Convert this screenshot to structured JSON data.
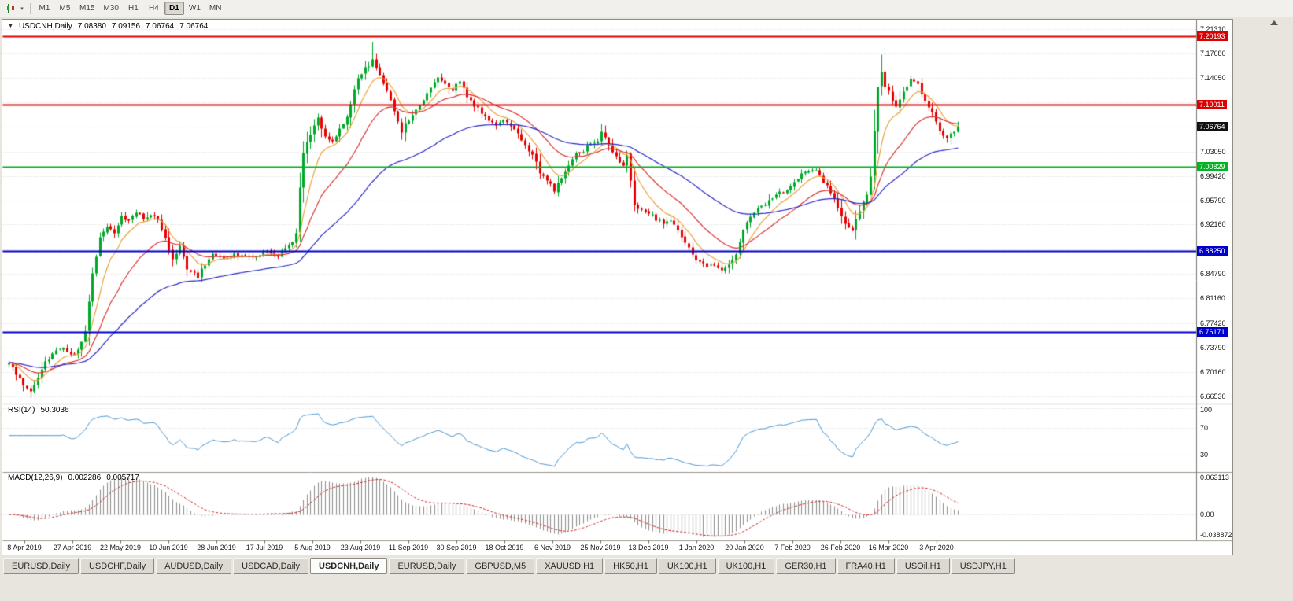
{
  "toolbar": {
    "timeframes": [
      "M1",
      "M5",
      "M15",
      "M30",
      "H1",
      "H4",
      "D1",
      "W1",
      "MN"
    ],
    "active_timeframe": "D1"
  },
  "chart_header": {
    "symbol_title": "USDCNH,Daily",
    "open": "7.08380",
    "high": "7.09156",
    "low": "7.06764",
    "close": "7.06764"
  },
  "rsi_panel": {
    "label": "RSI(14)",
    "value": "50.3036",
    "levels": [
      "100",
      "70",
      "30"
    ]
  },
  "macd_panel": {
    "label": "MACD(12,26,9)",
    "value_main": "0.002286",
    "value_signal": "0.005717",
    "axis_labels": [
      "0.063113",
      "0.00",
      "-0.038872"
    ],
    "axis_values": [
      0.063113,
      0,
      -0.038872
    ]
  },
  "chart_data": {
    "type": "candlestick",
    "symbol": "USDCNH",
    "timeframe": "Daily",
    "title": "USDCNH,Daily",
    "quote": {
      "open": 7.0838,
      "high": 7.09156,
      "low": 7.06764,
      "close": 7.06764
    },
    "y_range": [
      6.6594,
      7.2201
    ],
    "y_ticks": [
      "7.21310",
      "7.17680",
      "7.14050",
      "7.03050",
      "6.99420",
      "6.95790",
      "6.92160",
      "6.84790",
      "6.81160",
      "6.77420",
      "6.73790",
      "6.70160",
      "6.66530"
    ],
    "y_grid_extra": [
      7.1042,
      7.0679,
      6.88475
    ],
    "x_labels": [
      "8 Apr 2019",
      "27 Apr 2019",
      "22 May 2019",
      "10 Jun 2019",
      "28 Jun 2019",
      "17 Jul 2019",
      "5 Aug 2019",
      "23 Aug 2019",
      "11 Sep 2019",
      "30 Sep 2019",
      "18 Oct 2019",
      "6 Nov 2019",
      "25 Nov 2019",
      "13 Dec 2019",
      "1 Jan 2020",
      "20 Jan 2020",
      "7 Feb 2020",
      "26 Feb 2020",
      "16 Mar 2020",
      "3 Apr 2020"
    ],
    "h_lines": [
      {
        "price": 7.20193,
        "label": "7.20193",
        "color": "#dd0000"
      },
      {
        "price": 7.10011,
        "label": "7.10011",
        "color": "#dd0000"
      },
      {
        "price": 7.00829,
        "label": "7.00829",
        "color": "#00b31f"
      },
      {
        "price": 6.8825,
        "label": "6.88250",
        "color": "#0000cc"
      },
      {
        "price": 6.76171,
        "label": "6.76171",
        "color": "#0000cc"
      }
    ],
    "current_price": {
      "value": 7.06764,
      "label": "7.06764",
      "tag_color": "#111111"
    },
    "up_color": "#00a829",
    "down_color": "#e60000",
    "candles_count": 262,
    "close_path": [
      [
        0,
        6.718
      ],
      [
        2,
        6.7
      ],
      [
        4,
        6.684
      ],
      [
        6,
        6.671
      ],
      [
        8,
        6.696
      ],
      [
        10,
        6.716
      ],
      [
        13,
        6.733
      ],
      [
        15,
        6.739
      ],
      [
        17,
        6.727
      ],
      [
        19,
        6.736
      ],
      [
        21,
        6.762
      ],
      [
        23,
        6.848
      ],
      [
        25,
        6.906
      ],
      [
        27,
        6.918
      ],
      [
        29,
        6.912
      ],
      [
        31,
        6.936
      ],
      [
        33,
        6.928
      ],
      [
        35,
        6.943
      ],
      [
        37,
        6.931
      ],
      [
        39,
        6.939
      ],
      [
        41,
        6.928
      ],
      [
        43,
        6.904
      ],
      [
        45,
        6.868
      ],
      [
        47,
        6.889
      ],
      [
        49,
        6.857
      ],
      [
        52,
        6.845
      ],
      [
        54,
        6.863
      ],
      [
        56,
        6.877
      ],
      [
        59,
        6.871
      ],
      [
        62,
        6.879
      ],
      [
        65,
        6.874
      ],
      [
        68,
        6.877
      ],
      [
        71,
        6.881
      ],
      [
        74,
        6.877
      ],
      [
        77,
        6.889
      ],
      [
        79,
        6.908
      ],
      [
        80,
        6.978
      ],
      [
        81,
        7.028
      ],
      [
        83,
        7.058
      ],
      [
        85,
        7.082
      ],
      [
        87,
        7.054
      ],
      [
        89,
        7.046
      ],
      [
        91,
        7.063
      ],
      [
        93,
        7.081
      ],
      [
        95,
        7.126
      ],
      [
        97,
        7.149
      ],
      [
        99,
        7.161
      ],
      [
        100,
        7.168
      ],
      [
        102,
        7.146
      ],
      [
        104,
        7.124
      ],
      [
        106,
        7.089
      ],
      [
        108,
        7.061
      ],
      [
        110,
        7.079
      ],
      [
        112,
        7.093
      ],
      [
        114,
        7.109
      ],
      [
        116,
        7.127
      ],
      [
        118,
        7.144
      ],
      [
        120,
        7.131
      ],
      [
        122,
        7.124
      ],
      [
        124,
        7.137
      ],
      [
        126,
        7.113
      ],
      [
        128,
        7.099
      ],
      [
        130,
        7.089
      ],
      [
        132,
        7.077
      ],
      [
        134,
        7.069
      ],
      [
        136,
        7.079
      ],
      [
        138,
        7.071
      ],
      [
        140,
        7.057
      ],
      [
        142,
        7.041
      ],
      [
        144,
        7.026
      ],
      [
        146,
        7.001
      ],
      [
        148,
        6.989
      ],
      [
        150,
        6.971
      ],
      [
        152,
        6.993
      ],
      [
        154,
        7.013
      ],
      [
        156,
        7.028
      ],
      [
        158,
        7.033
      ],
      [
        160,
        7.043
      ],
      [
        162,
        7.049
      ],
      [
        163,
        7.061
      ],
      [
        165,
        7.041
      ],
      [
        167,
        7.023
      ],
      [
        169,
        7.013
      ],
      [
        170,
        7.024
      ],
      [
        172,
        6.951
      ],
      [
        174,
        6.944
      ],
      [
        176,
        6.939
      ],
      [
        178,
        6.931
      ],
      [
        180,
        6.921
      ],
      [
        182,
        6.928
      ],
      [
        184,
        6.917
      ],
      [
        186,
        6.897
      ],
      [
        188,
        6.877
      ],
      [
        190,
        6.866
      ],
      [
        192,
        6.858
      ],
      [
        194,
        6.861
      ],
      [
        196,
        6.855
      ],
      [
        198,
        6.861
      ],
      [
        200,
        6.879
      ],
      [
        202,
        6.913
      ],
      [
        204,
        6.934
      ],
      [
        206,
        6.947
      ],
      [
        208,
        6.953
      ],
      [
        210,
        6.961
      ],
      [
        212,
        6.969
      ],
      [
        214,
        6.973
      ],
      [
        216,
        6.983
      ],
      [
        218,
        6.996
      ],
      [
        220,
        7.003
      ],
      [
        222,
        7.004
      ],
      [
        224,
        6.987
      ],
      [
        226,
        6.971
      ],
      [
        228,
        6.947
      ],
      [
        230,
        6.924
      ],
      [
        232,
        6.913
      ],
      [
        234,
        6.944
      ],
      [
        236,
        6.966
      ],
      [
        237,
        6.996
      ],
      [
        238,
        7.062
      ],
      [
        239,
        7.126
      ],
      [
        240,
        7.151
      ],
      [
        241,
        7.129
      ],
      [
        242,
        7.119
      ],
      [
        244,
        7.097
      ],
      [
        246,
        7.123
      ],
      [
        248,
        7.136
      ],
      [
        250,
        7.131
      ],
      [
        252,
        7.109
      ],
      [
        254,
        7.089
      ],
      [
        256,
        7.063
      ],
      [
        258,
        7.051
      ],
      [
        260,
        7.061
      ],
      [
        261,
        7.068
      ]
    ],
    "ma": [
      {
        "period": 8,
        "color": "#e8a33d"
      },
      {
        "period": 21,
        "color": "#dd3333"
      },
      {
        "period": 55,
        "color": "#2929cc"
      }
    ],
    "rsi": {
      "period": 14,
      "color": "#4a96d2"
    },
    "macd": {
      "fast": 12,
      "slow": 26,
      "signal": 9,
      "hist_color": "#8d8d8d",
      "signal_color": "#d02020"
    }
  },
  "bottom_tabs": {
    "active_index": 4,
    "items": [
      "EURUSD,Daily",
      "USDCHF,Daily",
      "AUDUSD,Daily",
      "USDCAD,Daily",
      "USDCNH,Daily",
      "EURUSD,Daily",
      "GBPUSD,M5",
      "XAUUSD,H1",
      "HK50,H1",
      "UK100,H1",
      "UK100,H1",
      "GER30,H1",
      "FRA40,H1",
      "USOil,H1",
      "USDJPY,H1"
    ]
  }
}
